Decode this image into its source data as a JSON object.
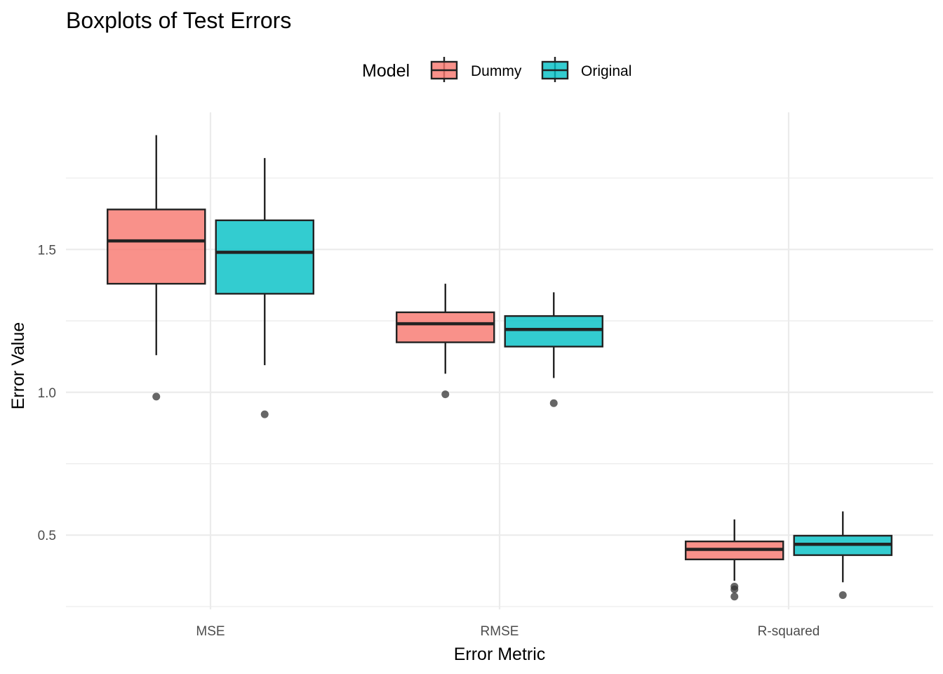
{
  "chart_data": {
    "type": "boxplot",
    "title": "Boxplots of Test Errors",
    "xlabel": "Error Metric",
    "ylabel": "Error Value",
    "categories": [
      "MSE",
      "RMSE",
      "R-squared"
    ],
    "ylim": [
      0.24,
      1.98
    ],
    "yticks": [
      0.5,
      1.0,
      1.5
    ],
    "ytick_labels": [
      "0.5",
      "1.0",
      "1.5"
    ],
    "grid": true,
    "legend": {
      "title": "Model",
      "position": "top"
    },
    "series": [
      {
        "name": "Dummy",
        "color": "#F8766D",
        "boxes": [
          {
            "category": "MSE",
            "whisker_low": 1.13,
            "q1": 1.38,
            "median": 1.53,
            "q3": 1.64,
            "whisker_high": 1.9,
            "outliers": [
              0.985
            ]
          },
          {
            "category": "RMSE",
            "whisker_low": 1.065,
            "q1": 1.175,
            "median": 1.24,
            "q3": 1.28,
            "whisker_high": 1.38,
            "outliers": [
              0.993
            ]
          },
          {
            "category": "R-squared",
            "whisker_low": 0.34,
            "q1": 0.415,
            "median": 0.45,
            "q3": 0.478,
            "whisker_high": 0.555,
            "outliers": [
              0.32,
              0.31,
              0.285
            ]
          }
        ]
      },
      {
        "name": "Original",
        "color": "#00BFC4",
        "boxes": [
          {
            "category": "MSE",
            "whisker_low": 1.095,
            "q1": 1.345,
            "median": 1.49,
            "q3": 1.602,
            "whisker_high": 1.82,
            "outliers": [
              0.923
            ]
          },
          {
            "category": "RMSE",
            "whisker_low": 1.05,
            "q1": 1.16,
            "median": 1.22,
            "q3": 1.267,
            "whisker_high": 1.35,
            "outliers": [
              0.962
            ]
          },
          {
            "category": "R-squared",
            "whisker_low": 0.335,
            "q1": 0.43,
            "median": 0.468,
            "q3": 0.498,
            "whisker_high": 0.583,
            "outliers": [
              0.29
            ]
          }
        ]
      }
    ]
  }
}
